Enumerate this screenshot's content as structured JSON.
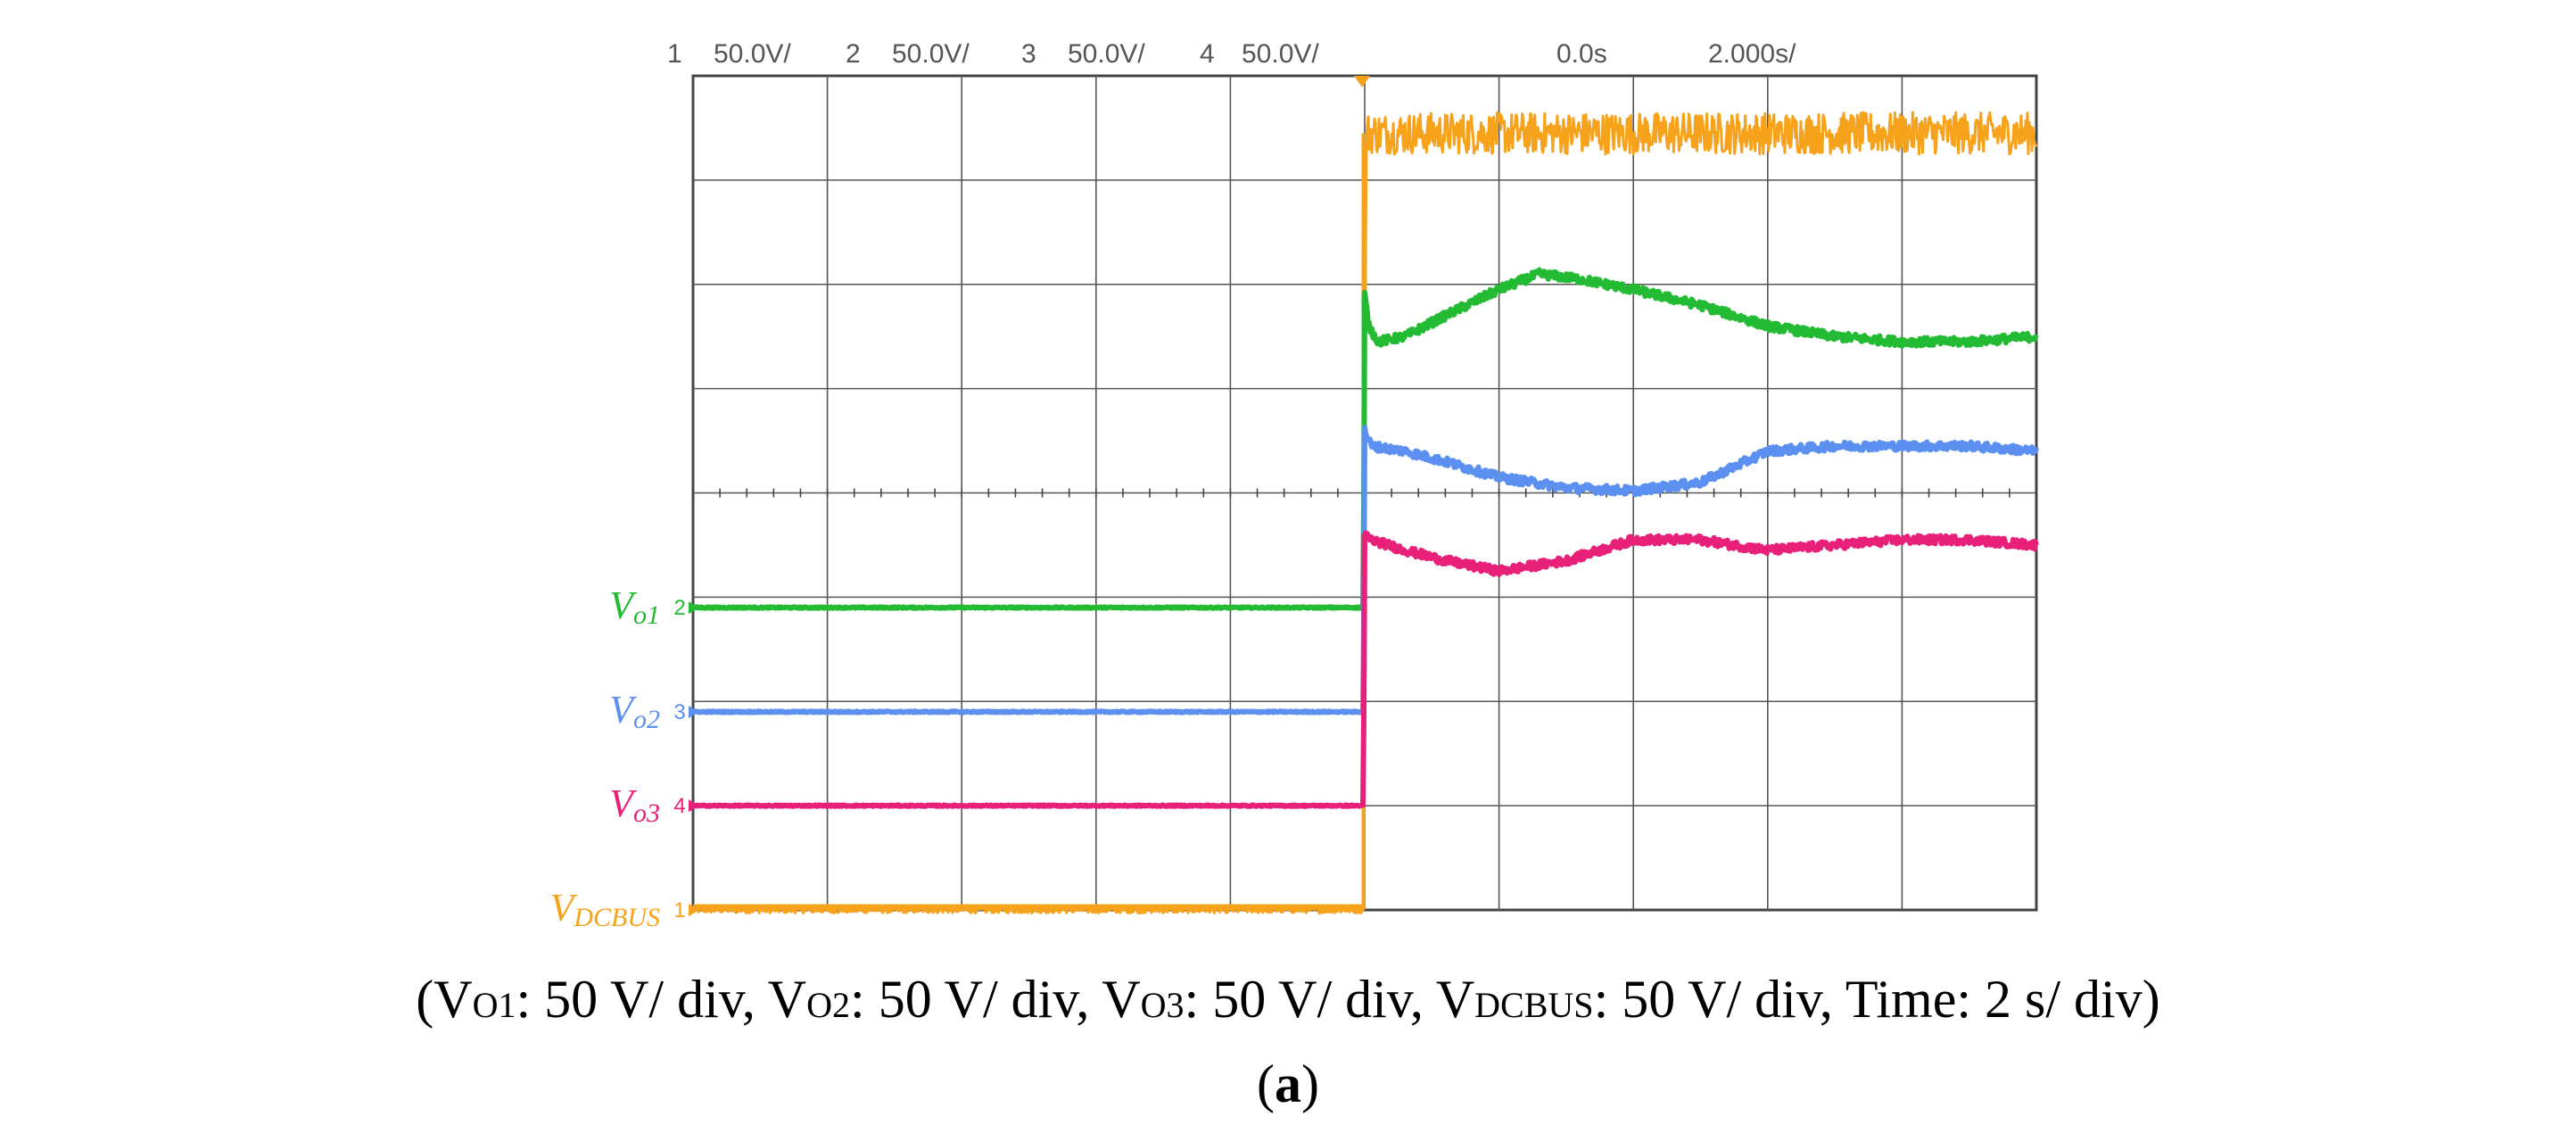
{
  "chart_data": {
    "type": "line",
    "title": "",
    "header": {
      "channels": [
        {
          "number": "1",
          "scale": "50.0V/",
          "color": "#f7a21b"
        },
        {
          "number": "2",
          "scale": "50.0V/",
          "color": "#22bb33"
        },
        {
          "number": "3",
          "scale": "50.0V/",
          "color": "#5b8ff0"
        },
        {
          "number": "4",
          "scale": "50.0V/",
          "color": "#e8207a"
        }
      ],
      "trigger_position": "0.0s",
      "timebase": "2.000s/"
    },
    "grid": {
      "x_divisions": 10,
      "y_divisions": 8
    },
    "xlim": [
      0,
      10
    ],
    "ylim": [
      0,
      8
    ],
    "xlabel": "",
    "ylabel": "",
    "series": [
      {
        "name": "VDCBUS",
        "label_main": "V",
        "label_sub": "DCBUS",
        "channel": "1",
        "color": "#f7a21b",
        "noise": 0.2,
        "x": [
          0,
          4.99,
          5.01,
          5.1,
          6,
          7,
          8,
          9,
          10
        ],
        "y": [
          0,
          0,
          7.45,
          7.45,
          7.45,
          7.45,
          7.45,
          7.45,
          7.45
        ]
      },
      {
        "name": "Vo1",
        "label_main": "V",
        "label_sub": "o1",
        "channel": "2",
        "color": "#22bb33",
        "noise": 0.04,
        "x": [
          0,
          4.99,
          5.0,
          5.03,
          5.1,
          5.3,
          5.6,
          6.0,
          6.3,
          6.6,
          7.0,
          7.5,
          8.0,
          8.5,
          9.0,
          9.5,
          10
        ],
        "y": [
          2.9,
          2.9,
          5.9,
          5.6,
          5.45,
          5.5,
          5.7,
          5.95,
          6.1,
          6.05,
          5.95,
          5.8,
          5.6,
          5.5,
          5.45,
          5.45,
          5.5
        ]
      },
      {
        "name": "Vo2",
        "label_main": "V",
        "label_sub": "o2",
        "channel": "3",
        "color": "#5b8ff0",
        "noise": 0.04,
        "x": [
          0,
          4.99,
          5.0,
          5.05,
          5.3,
          5.6,
          6.0,
          6.5,
          7.0,
          7.5,
          8.0,
          8.5,
          9.0,
          9.5,
          10
        ],
        "y": [
          1.9,
          1.9,
          4.6,
          4.45,
          4.4,
          4.3,
          4.15,
          4.05,
          4.02,
          4.1,
          4.4,
          4.45,
          4.45,
          4.45,
          4.4
        ]
      },
      {
        "name": "Vo3",
        "label_main": "V",
        "label_sub": "o3",
        "channel": "4",
        "color": "#e8207a",
        "noise": 0.04,
        "x": [
          0,
          4.99,
          5.0,
          5.05,
          5.3,
          5.6,
          6.0,
          6.5,
          7.0,
          7.5,
          8.0,
          8.5,
          9.0,
          9.5,
          10
        ],
        "y": [
          1.0,
          1.0,
          3.6,
          3.55,
          3.45,
          3.35,
          3.25,
          3.35,
          3.55,
          3.55,
          3.45,
          3.5,
          3.55,
          3.55,
          3.5
        ]
      }
    ]
  },
  "caption": {
    "open": "(",
    "parts": [
      {
        "main": "V",
        "sub": "O1",
        "rest": ": 50 V/ div, "
      },
      {
        "main": "V",
        "sub": "O2",
        "rest": ": 50 V/ div, "
      },
      {
        "main": "V",
        "sub": "O3",
        "rest": ": 50 V/ div, "
      },
      {
        "main": "V",
        "sub": "DCBUS",
        "rest": ": 50 V/ div, "
      }
    ],
    "time": "Time: 2 s/ div",
    "close": ")"
  },
  "figure_label": {
    "open": "(",
    "letter": "a",
    "close": ")"
  }
}
